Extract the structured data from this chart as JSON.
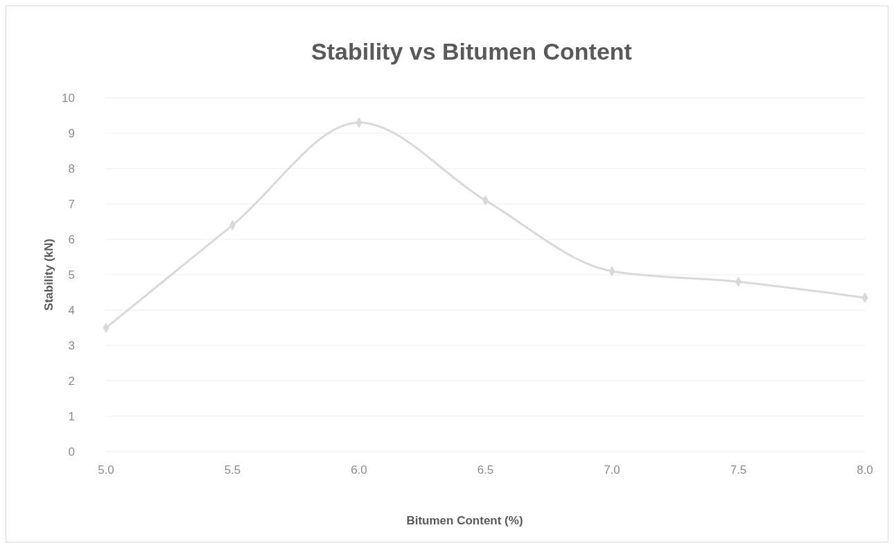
{
  "chart_data": {
    "type": "line",
    "title": "Stability vs Bitumen Content",
    "xlabel": "Bitumen Content (%)",
    "ylabel": "Stability (kN)",
    "categories": [
      "5.0",
      "5.5",
      "6.0",
      "6.5",
      "7.0",
      "7.5",
      "8.0"
    ],
    "series": [
      {
        "color": "#d9d9d9",
        "values": [
          3.5,
          6.4,
          9.3,
          7.1,
          5.1,
          4.8,
          4.35
        ]
      }
    ],
    "ylim": [
      0,
      10
    ],
    "yticks": [
      0,
      1,
      2,
      3,
      4,
      5,
      6,
      7,
      8,
      9,
      10
    ],
    "grid": "y",
    "marker": "diamond",
    "line_style": "solid"
  }
}
